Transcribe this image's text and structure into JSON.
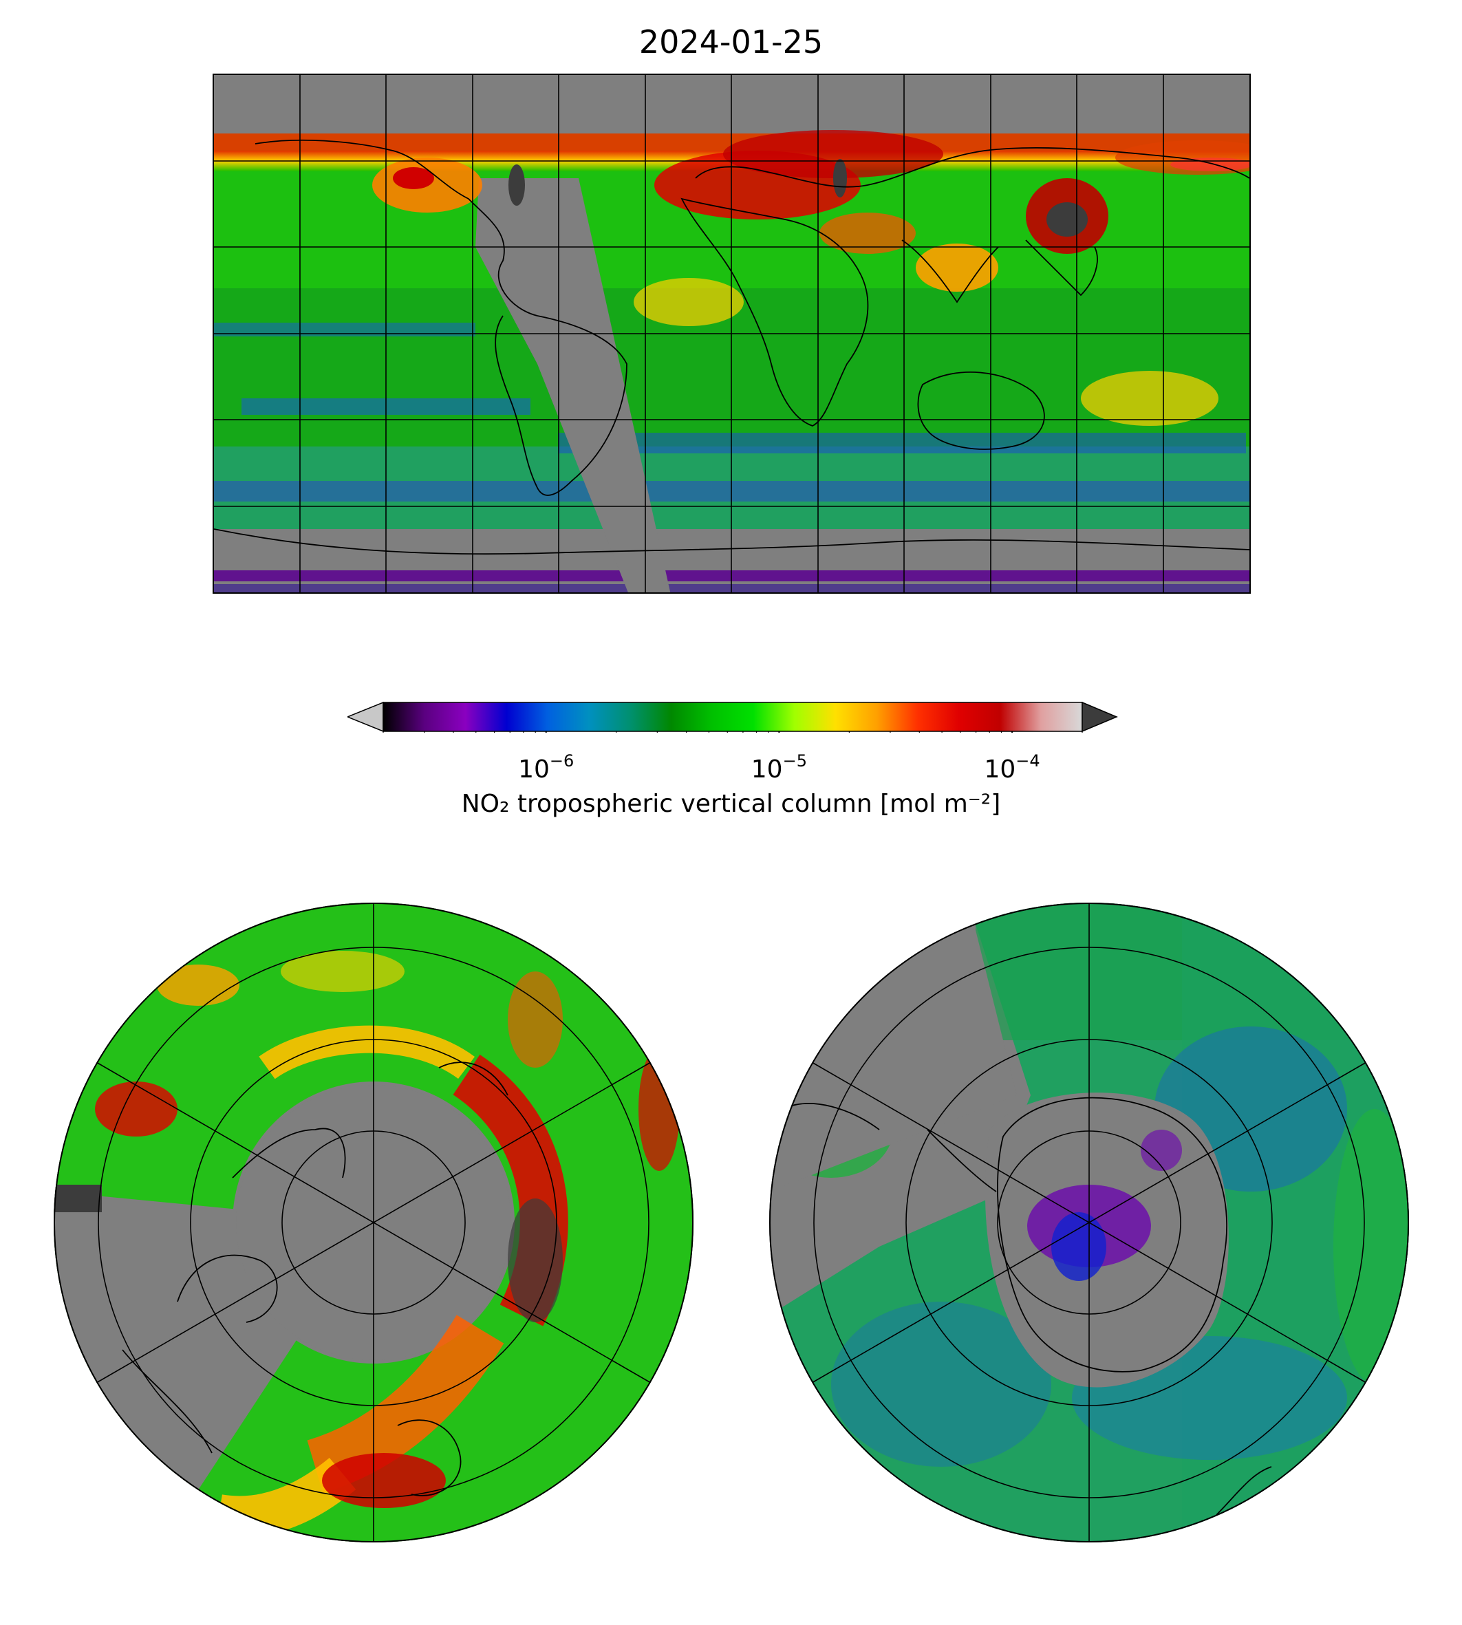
{
  "figure": {
    "title": "2024-01-25"
  },
  "colorbar": {
    "label": "NO₂ tropospheric vertical column [mol m⁻²]",
    "scale": "log",
    "range": [
      2e-07,
      0.0002
    ],
    "ticks": [
      {
        "value": 1e-06,
        "base": "10",
        "exp": "−6"
      },
      {
        "value": 1e-05,
        "base": "10",
        "exp": "−5"
      },
      {
        "value": 0.0001,
        "base": "10",
        "exp": "−4"
      }
    ],
    "colors": [
      "#000000",
      "#5a0080",
      "#8a00c0",
      "#0000d0",
      "#0060e0",
      "#0090c0",
      "#009070",
      "#008800",
      "#00c000",
      "#00e000",
      "#a0ff00",
      "#ffe000",
      "#ffa000",
      "#ff3000",
      "#e00000",
      "#c00000",
      "#e0a0a0",
      "#d8d8d8"
    ],
    "extend_low_color": "#c8c8c8",
    "extend_high_color": "#3c3c3c"
  },
  "maps": {
    "world": {
      "projection": "plate carree",
      "background_color": "#7f7f7f"
    },
    "north": {
      "projection": "north polar stereographic"
    },
    "south": {
      "projection": "south polar stereographic"
    }
  }
}
